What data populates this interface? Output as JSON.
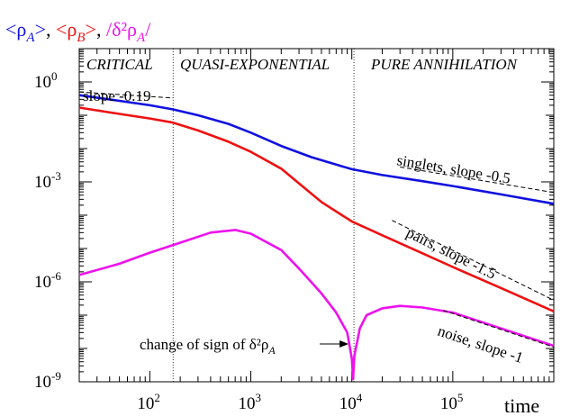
{
  "chart_data": {
    "type": "line",
    "title_parts": [
      {
        "text": "<ρ_A>",
        "color": "#1010e0"
      },
      {
        "text": ", ",
        "color": "#000000"
      },
      {
        "text": "<ρ_B>",
        "color": "#ee1111"
      },
      {
        "text": ", ",
        "color": "#000000"
      },
      {
        "text": "/δ²ρ_A/",
        "color": "#ee11ee"
      }
    ],
    "xlabel": "time",
    "x_scale": "log",
    "y_scale": "log",
    "xlim": [
      20,
      1000000
    ],
    "ylim": [
      1e-09,
      10.0
    ],
    "x_ticks": [
      {
        "value": 100,
        "label": "10^2"
      },
      {
        "value": 1000,
        "label": "10^3"
      },
      {
        "value": 10000,
        "label": "10^4"
      },
      {
        "value": 100000,
        "label": "10^5"
      }
    ],
    "y_ticks": [
      {
        "value": 1,
        "label": "10^0"
      },
      {
        "value": 0.001,
        "label": "10^-3"
      },
      {
        "value": 1e-06,
        "label": "10^-6"
      },
      {
        "value": 1e-09,
        "label": "10^-9"
      }
    ],
    "regions": [
      {
        "label": "CRITICAL",
        "x_from": 20,
        "x_to": 170
      },
      {
        "label": "QUASI-EXPONENTIAL",
        "x_from": 170,
        "x_to": 10500
      },
      {
        "label": "PURE ANNIHILATION",
        "x_from": 10500,
        "x_to": 1000000
      }
    ],
    "region_boundaries": [
      170,
      10500
    ],
    "series": [
      {
        "name": "<ρ_A>",
        "color": "#1010e0",
        "points": [
          [
            20,
            0.4
          ],
          [
            50,
            0.27
          ],
          [
            100,
            0.2
          ],
          [
            170,
            0.15
          ],
          [
            300,
            0.1
          ],
          [
            600,
            0.055
          ],
          [
            1000,
            0.03
          ],
          [
            2000,
            0.012
          ],
          [
            4000,
            0.0055
          ],
          [
            7000,
            0.0033
          ],
          [
            10000,
            0.0024
          ],
          [
            20000,
            0.0016
          ],
          [
            50000,
            0.00105
          ],
          [
            100000,
            0.00075
          ],
          [
            300000,
            0.00042
          ],
          [
            1000000,
            0.00022
          ]
        ]
      },
      {
        "name": "<ρ_B>",
        "color": "#ee1111",
        "points": [
          [
            20,
            0.17
          ],
          [
            50,
            0.11
          ],
          [
            100,
            0.08
          ],
          [
            170,
            0.06
          ],
          [
            300,
            0.035
          ],
          [
            600,
            0.016
          ],
          [
            1000,
            0.008
          ],
          [
            2000,
            0.0025
          ],
          [
            3000,
            0.0009
          ],
          [
            5000,
            0.00025
          ],
          [
            8000,
            0.0001
          ],
          [
            10000,
            6.5e-05
          ],
          [
            20000,
            2.5e-05
          ],
          [
            50000,
            7.2e-06
          ],
          [
            100000,
            2.8e-06
          ],
          [
            300000,
            6.5e-07
          ],
          [
            1000000,
            1.3e-07
          ]
        ]
      },
      {
        "name": "/δ²ρ_A/",
        "color": "#ee11ee",
        "points": [
          [
            20,
            1.6e-06
          ],
          [
            50,
            3.5e-06
          ],
          [
            100,
            7.5e-06
          ],
          [
            200,
            1.5e-05
          ],
          [
            400,
            3e-05
          ],
          [
            700,
            3.6e-05
          ],
          [
            1000,
            2.8e-05
          ],
          [
            2000,
            9e-06
          ],
          [
            3000,
            2.5e-06
          ],
          [
            5000,
            4.5e-07
          ],
          [
            7000,
            1.2e-07
          ],
          [
            9000,
            3e-08
          ],
          [
            10000,
            5e-09
          ],
          [
            10300,
            1.2e-09
          ],
          [
            10600,
            6e-09
          ],
          [
            12000,
            4e-08
          ],
          [
            14000,
            1e-07
          ],
          [
            20000,
            1.6e-07
          ],
          [
            30000,
            1.9e-07
          ],
          [
            50000,
            1.7e-07
          ],
          [
            100000,
            1.2e-07
          ],
          [
            200000,
            6e-08
          ],
          [
            400000,
            3e-08
          ],
          [
            1000000,
            1.2e-08
          ]
        ]
      }
    ],
    "slope_lines": [
      {
        "label": "slope -0.19",
        "x1": 20,
        "y1": 0.5,
        "x2": 170,
        "y2": 0.33
      },
      {
        "label": "singlets, slope -0.5",
        "x1": 30000,
        "y1": 0.0028,
        "x2": 1000000,
        "y2": 0.00048
      },
      {
        "label": "pairs, slope -1.5",
        "x1": 25000,
        "y1": 7e-05,
        "x2": 1000000,
        "y2": 2.8e-07
      },
      {
        "label": "noise, slope -1",
        "x1": 80000,
        "y1": 1.4e-07,
        "x2": 1000000,
        "y2": 1.1e-08
      }
    ],
    "annotations": [
      {
        "text": "change of sign of δ²ρ_A",
        "arrow_to_x": 10300,
        "arrow_to_y": 8e-09
      }
    ]
  }
}
